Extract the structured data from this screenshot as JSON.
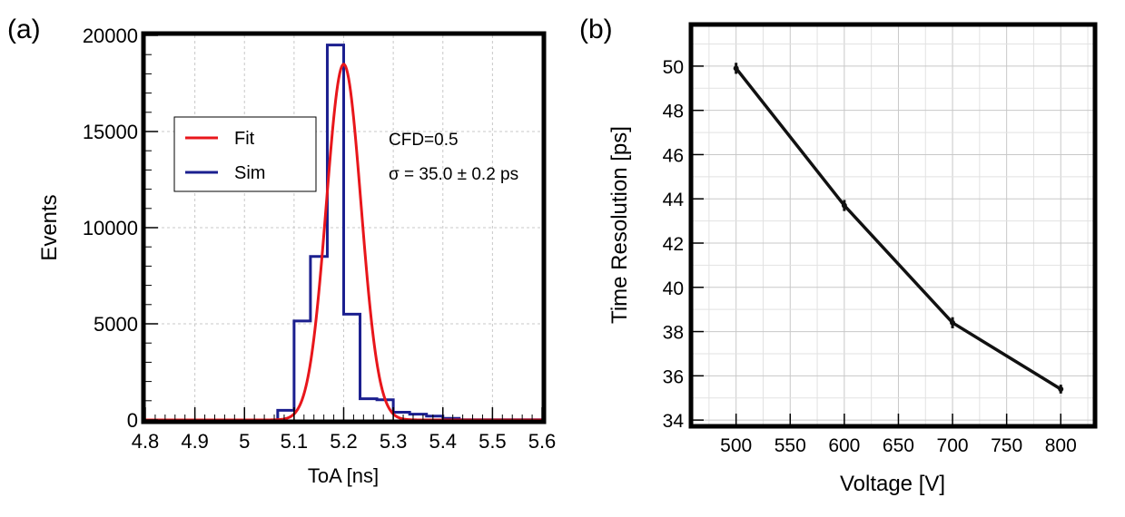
{
  "panel_labels": {
    "a": "(a)",
    "b": "(b)"
  },
  "colors": {
    "fit": "#e8161b",
    "sim": "#1b1f8f",
    "line": "#111111",
    "grid": "#c8c8c8",
    "frame": "#000000"
  },
  "annotations": {
    "cfd": "CFD=0.5",
    "sigma": "σ = 35.0 ± 0.2 ps"
  },
  "chart_data": [
    {
      "type": "histogram",
      "panel": "(a)",
      "xlabel": "ToA [ns]",
      "ylabel": "Events",
      "xlim": [
        4.8,
        5.6
      ],
      "ylim": [
        0,
        20000
      ],
      "xticks": [
        "4.8",
        "4.9",
        "5",
        "5.1",
        "5.2",
        "5.3",
        "5.4",
        "5.5",
        "5.6"
      ],
      "yticks": [
        "0",
        "5000",
        "10000",
        "15000",
        "20000"
      ],
      "grid": true,
      "legend_position": "upper-left",
      "series": [
        {
          "name": "Sim",
          "kind": "step",
          "bin_edges": [
            4.8,
            5.067,
            5.1,
            5.133,
            5.167,
            5.2,
            5.233,
            5.267,
            5.3,
            5.333,
            5.367,
            5.4,
            5.433,
            5.6
          ],
          "values": [
            0,
            500,
            5150,
            8500,
            19500,
            5500,
            1100,
            1050,
            400,
            300,
            200,
            80,
            10
          ]
        },
        {
          "name": "Fit",
          "kind": "gaussian",
          "mean": 5.2,
          "sigma": 0.035,
          "amplitude": 18500,
          "x_range": [
            4.8,
            5.6
          ]
        }
      ]
    },
    {
      "type": "line",
      "panel": "(b)",
      "xlabel": "Voltage [V]",
      "ylabel": "Time Resolution [ps]",
      "xlim": [
        460,
        830
      ],
      "ylim": [
        33.8,
        51.8
      ],
      "xticks": [
        "500",
        "550",
        "600",
        "650",
        "700",
        "750",
        "800"
      ],
      "yticks": [
        "34",
        "36",
        "38",
        "40",
        "42",
        "44",
        "46",
        "48",
        "50"
      ],
      "grid": true,
      "series": [
        {
          "x": [
            500,
            600,
            700,
            800
          ],
          "y": [
            49.9,
            43.7,
            38.4,
            35.4
          ],
          "yerr": [
            0.25,
            0.25,
            0.25,
            0.2
          ]
        }
      ]
    }
  ]
}
